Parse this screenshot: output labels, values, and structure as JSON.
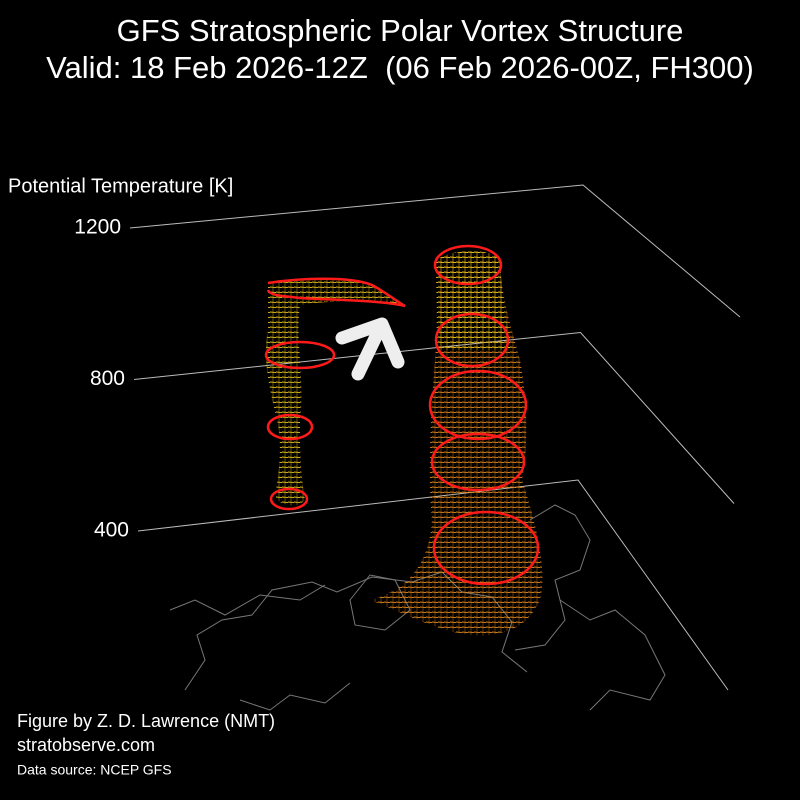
{
  "chart_data": {
    "type": "surface3d",
    "title": "GFS Stratospheric Polar Vortex Structure",
    "subtitle": "Valid: 18 Feb 2026-12Z  (06 Feb 2026-00Z, FH300)",
    "z_label": "Potential Temperature [K]",
    "zlim": [
      400,
      1200
    ],
    "zticks": [
      400,
      800,
      1200
    ],
    "grid": true,
    "annotations": [
      "Figure by Z. D. Lawrence (NMT)",
      "stratobserve.com",
      "Data source: NCEP GFS"
    ]
  }
}
